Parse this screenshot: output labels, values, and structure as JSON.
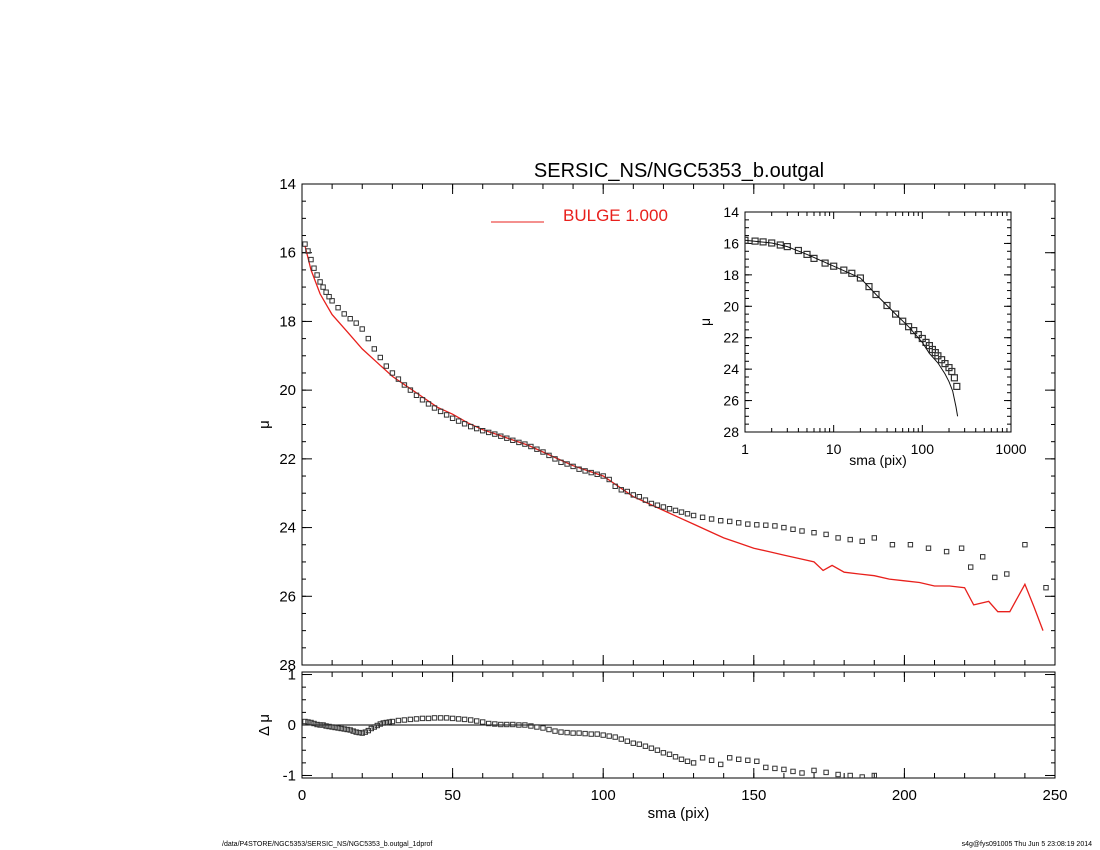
{
  "title": "SERSIC_NS/NGC5353_b.outgal",
  "footer": {
    "left": "/data/P4STORE/NGC5353/SERSIC_NS/NGC5353_b.outgal_1dprof",
    "right": "s4g@fys091005  Thu Jun  5 23:08:19 2014"
  },
  "colors": {
    "model": "#e8201c",
    "data": "#333333",
    "axis": "#000000"
  },
  "chart_data": [
    {
      "id": "main-profile",
      "type": "scatter",
      "xlabel": "",
      "ylabel": "μ",
      "xlim": [
        0,
        250
      ],
      "ylim": [
        28,
        14
      ],
      "y_inverted": true,
      "x_ticks": [
        0,
        50,
        100,
        150,
        200,
        250
      ],
      "x_tick_labels_shown": false,
      "y_ticks": [
        14,
        16,
        18,
        20,
        22,
        24,
        26,
        28
      ],
      "legend": {
        "position": "top-center",
        "entries": [
          {
            "label": "BULGE  1.000",
            "color": "#e8201c"
          }
        ]
      },
      "series": [
        {
          "name": "BULGE  1.000",
          "kind": "line",
          "color": "#e8201c",
          "x": [
            1,
            3,
            6,
            10,
            15,
            20,
            25,
            30,
            35,
            40,
            45,
            50,
            55,
            60,
            65,
            70,
            75,
            80,
            85,
            90,
            95,
            100,
            105,
            110,
            115,
            120,
            125,
            130,
            135,
            140,
            145,
            150,
            155,
            160,
            165,
            170,
            173,
            176,
            180,
            185,
            190,
            195,
            200,
            205,
            210,
            215,
            220,
            223,
            228,
            231,
            235,
            240,
            243,
            246
          ],
          "y": [
            15.8,
            16.5,
            17.2,
            17.8,
            18.3,
            18.8,
            19.2,
            19.6,
            19.9,
            20.2,
            20.5,
            20.7,
            20.95,
            21.15,
            21.3,
            21.45,
            21.6,
            21.8,
            22.0,
            22.2,
            22.35,
            22.5,
            22.8,
            23.1,
            23.3,
            23.5,
            23.7,
            23.9,
            24.1,
            24.3,
            24.45,
            24.6,
            24.7,
            24.8,
            24.9,
            25.0,
            25.25,
            25.1,
            25.3,
            25.35,
            25.4,
            25.5,
            25.55,
            25.6,
            25.7,
            25.7,
            25.75,
            26.25,
            26.15,
            26.45,
            26.45,
            25.65,
            26.3,
            27.0
          ]
        },
        {
          "name": "",
          "kind": "markers",
          "color": "#333333",
          "x": [
            1,
            2,
            3,
            4,
            5,
            6,
            7,
            8,
            9,
            10,
            12,
            14,
            16,
            18,
            20,
            22,
            24,
            26,
            28,
            30,
            32,
            34,
            36,
            38,
            40,
            42,
            44,
            46,
            48,
            50,
            52,
            54,
            56,
            58,
            60,
            62,
            64,
            66,
            68,
            70,
            72,
            74,
            76,
            78,
            80,
            82,
            84,
            86,
            88,
            90,
            92,
            94,
            96,
            98,
            100,
            102,
            104,
            106,
            108,
            110,
            112,
            114,
            116,
            118,
            120,
            122,
            124,
            126,
            128,
            130,
            133,
            136,
            139,
            142,
            145,
            148,
            151,
            154,
            157,
            160,
            163,
            166,
            170,
            174,
            178,
            182,
            186,
            190,
            196,
            202,
            208,
            214,
            219,
            222,
            226,
            230,
            234,
            240,
            247
          ],
          "y": [
            15.75,
            15.95,
            16.2,
            16.45,
            16.65,
            16.85,
            17.0,
            17.15,
            17.28,
            17.4,
            17.6,
            17.78,
            17.92,
            18.05,
            18.22,
            18.5,
            18.8,
            19.05,
            19.3,
            19.5,
            19.68,
            19.85,
            20.0,
            20.15,
            20.28,
            20.4,
            20.52,
            20.62,
            20.72,
            20.82,
            20.9,
            20.98,
            21.06,
            21.12,
            21.18,
            21.23,
            21.28,
            21.34,
            21.4,
            21.46,
            21.52,
            21.57,
            21.64,
            21.72,
            21.8,
            21.9,
            22.0,
            22.1,
            22.15,
            22.22,
            22.3,
            22.35,
            22.4,
            22.45,
            22.5,
            22.6,
            22.8,
            22.9,
            22.95,
            23.05,
            23.1,
            23.2,
            23.3,
            23.35,
            23.4,
            23.45,
            23.5,
            23.55,
            23.6,
            23.65,
            23.7,
            23.75,
            23.8,
            23.82,
            23.86,
            23.9,
            23.92,
            23.93,
            23.95,
            24.0,
            24.05,
            24.1,
            24.15,
            24.2,
            24.3,
            24.35,
            24.4,
            24.3,
            24.5,
            24.5,
            24.6,
            24.7,
            24.6,
            25.15,
            24.85,
            25.45,
            25.35,
            24.5,
            25.75
          ]
        }
      ]
    },
    {
      "id": "inset-profile",
      "type": "scatter",
      "xlabel": "sma (pix)",
      "ylabel": "μ",
      "x_scale": "log",
      "xlim": [
        1,
        1000
      ],
      "ylim": [
        28,
        14
      ],
      "y_inverted": true,
      "x_ticks": [
        1,
        10,
        100,
        1000
      ],
      "y_ticks": [
        14,
        16,
        18,
        20,
        22,
        24,
        26,
        28
      ],
      "series": [
        {
          "name": "",
          "kind": "markers",
          "color": "#333333",
          "x": [
            1,
            1.3,
            1.6,
            2,
            2.5,
            3,
            4,
            5,
            6,
            8,
            10,
            13,
            16,
            20,
            25,
            30,
            40,
            50,
            60,
            70,
            80,
            90,
            100,
            110,
            120,
            130,
            140,
            150,
            165,
            180,
            200,
            215,
            230,
            245
          ],
          "y": [
            15.8,
            15.85,
            15.9,
            15.97,
            16.1,
            16.2,
            16.45,
            16.7,
            16.95,
            17.25,
            17.45,
            17.7,
            17.9,
            18.2,
            18.75,
            19.25,
            19.95,
            20.5,
            20.95,
            21.3,
            21.55,
            21.8,
            22.05,
            22.3,
            22.5,
            22.75,
            22.95,
            23.15,
            23.4,
            23.65,
            23.9,
            24.15,
            24.55,
            25.1
          ]
        },
        {
          "name": "",
          "kind": "line",
          "color": "#111111",
          "x": [
            1,
            2,
            3,
            5,
            10,
            20,
            30,
            50,
            70,
            100,
            120,
            150,
            180,
            200,
            220,
            240,
            250
          ],
          "y": [
            15.8,
            15.97,
            16.2,
            16.7,
            17.45,
            18.2,
            19.25,
            20.5,
            21.3,
            22.3,
            23.0,
            23.6,
            24.3,
            24.8,
            25.4,
            26.4,
            27.0
          ]
        }
      ]
    },
    {
      "id": "residual",
      "type": "scatter",
      "xlabel": "sma (pix)",
      "ylabel": "Δ μ",
      "xlim": [
        0,
        250
      ],
      "ylim": [
        -1.05,
        1.05
      ],
      "x_ticks": [
        0,
        50,
        100,
        150,
        200,
        250
      ],
      "y_ticks": [
        -1,
        0,
        1
      ],
      "reference_line": 0,
      "series": [
        {
          "name": "",
          "kind": "markers",
          "color": "#333333",
          "x": [
            1,
            2,
            3,
            4,
            5,
            6,
            7,
            8,
            9,
            10,
            11,
            12,
            13,
            14,
            15,
            16,
            17,
            18,
            19,
            20,
            21,
            22,
            23,
            24,
            25,
            26,
            27,
            28,
            29,
            30,
            32,
            34,
            36,
            38,
            40,
            42,
            44,
            46,
            48,
            50,
            52,
            54,
            56,
            58,
            60,
            62,
            64,
            66,
            68,
            70,
            72,
            74,
            76,
            78,
            80,
            82,
            84,
            86,
            88,
            90,
            92,
            94,
            96,
            98,
            100,
            102,
            104,
            106,
            108,
            110,
            112,
            114,
            116,
            118,
            120,
            122,
            124,
            126,
            128,
            130,
            133,
            136,
            139,
            142,
            145,
            148,
            151,
            154,
            157,
            160,
            163,
            166,
            170,
            174,
            178,
            182,
            186,
            190
          ],
          "y": [
            0.07,
            0.06,
            0.05,
            0.03,
            0.01,
            0.0,
            0.0,
            -0.02,
            -0.03,
            -0.04,
            -0.05,
            -0.06,
            -0.07,
            -0.08,
            -0.09,
            -0.1,
            -0.12,
            -0.14,
            -0.15,
            -0.16,
            -0.14,
            -0.11,
            -0.07,
            -0.04,
            -0.01,
            0.02,
            0.04,
            0.05,
            0.06,
            0.07,
            0.09,
            0.1,
            0.11,
            0.12,
            0.13,
            0.13,
            0.14,
            0.14,
            0.14,
            0.13,
            0.12,
            0.11,
            0.1,
            0.08,
            0.06,
            0.03,
            0.02,
            0.01,
            0.01,
            0.01,
            0.0,
            0.0,
            -0.02,
            -0.04,
            -0.06,
            -0.09,
            -0.12,
            -0.14,
            -0.15,
            -0.16,
            -0.16,
            -0.17,
            -0.18,
            -0.18,
            -0.2,
            -0.22,
            -0.24,
            -0.28,
            -0.32,
            -0.36,
            -0.38,
            -0.42,
            -0.46,
            -0.5,
            -0.55,
            -0.58,
            -0.63,
            -0.68,
            -0.72,
            -0.75,
            -0.65,
            -0.7,
            -0.78,
            -0.65,
            -0.68,
            -0.7,
            -0.72,
            -0.84,
            -0.86,
            -0.88,
            -0.92,
            -0.95,
            -0.9,
            -0.94,
            -0.98,
            -1.0,
            -1.03,
            -1.0
          ]
        }
      ]
    }
  ]
}
